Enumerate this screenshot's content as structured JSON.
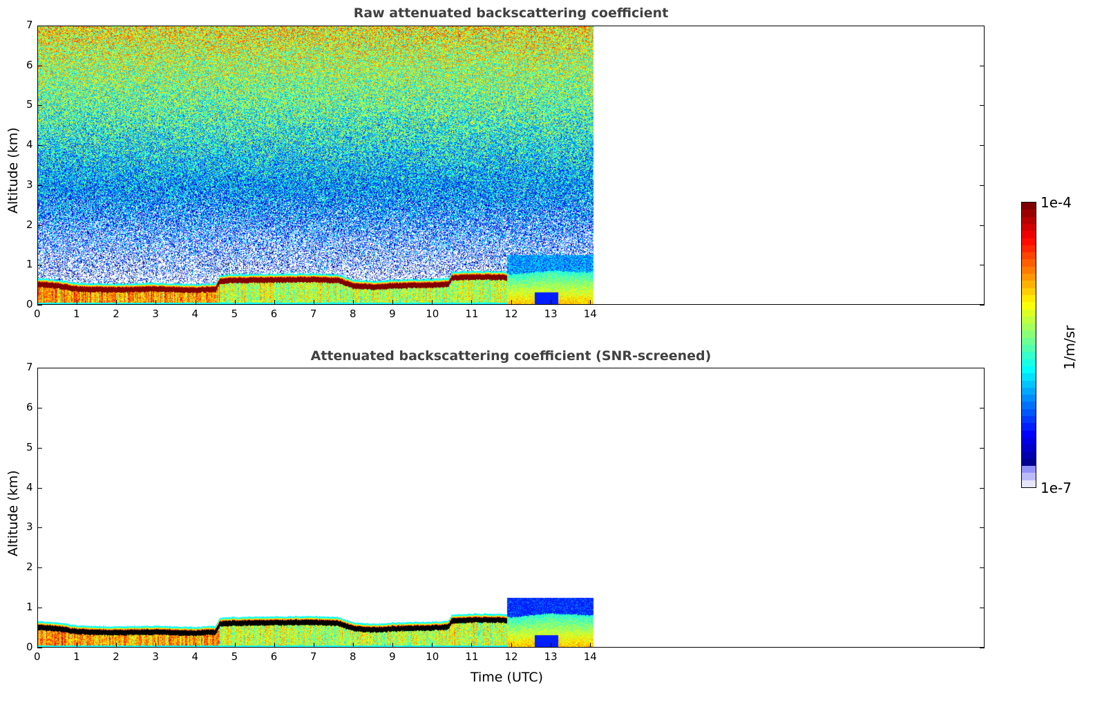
{
  "chart_data": [
    {
      "type": "heatmap",
      "title": "Raw attenuated backscattering coefficient",
      "xlabel": "",
      "ylabel": "Altitude (km)",
      "xlim": [
        0,
        24
      ],
      "ylim": [
        0,
        7
      ],
      "xticks": [
        0,
        1,
        2,
        3,
        4,
        5,
        6,
        7,
        8,
        9,
        10,
        11,
        12,
        13,
        14
      ],
      "yticks": [
        0,
        1,
        2,
        3,
        4,
        5,
        6,
        7
      ],
      "data_end_time": 14.1,
      "screened": false
    },
    {
      "type": "heatmap",
      "title": "Attenuated backscattering coefficient (SNR-screened)",
      "xlabel": "Time (UTC)",
      "ylabel": "Altitude (km)",
      "xlim": [
        0,
        24
      ],
      "ylim": [
        0,
        7
      ],
      "xticks": [
        0,
        1,
        2,
        3,
        4,
        5,
        6,
        7,
        8,
        9,
        10,
        11,
        12,
        13,
        14
      ],
      "yticks": [
        0,
        1,
        2,
        3,
        4,
        5,
        6,
        7
      ],
      "data_end_time": 14.1,
      "screened": true
    }
  ],
  "layer_top_km": {
    "time": [
      0,
      0.5,
      1,
      2,
      3,
      4,
      4.5,
      4.6,
      5,
      6,
      7,
      7.6,
      8,
      8.5,
      9,
      10,
      10.4,
      10.5,
      11,
      11.8,
      12,
      13,
      14.1
    ],
    "height": [
      0.62,
      0.58,
      0.5,
      0.48,
      0.5,
      0.47,
      0.5,
      0.7,
      0.72,
      0.73,
      0.74,
      0.72,
      0.58,
      0.55,
      0.58,
      0.6,
      0.62,
      0.78,
      0.8,
      0.8,
      0.75,
      0.85,
      0.8
    ]
  },
  "colorbar": {
    "label": "1/m/sr",
    "max_label": "1e-4",
    "min_label": "1e-7",
    "scale": "log",
    "range": [
      1e-07,
      0.0001
    ],
    "colormap": "jet",
    "levels": 40
  }
}
